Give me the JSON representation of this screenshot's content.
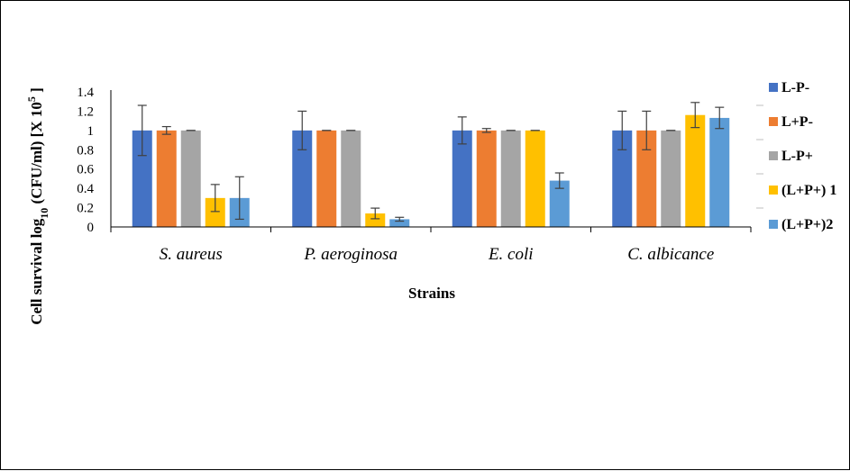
{
  "chart_data": {
    "type": "bar",
    "categories": [
      "S. aureus",
      "P. aeroginosa",
      "E. coli",
      "C. albicance"
    ],
    "series": [
      {
        "name": "L-P-",
        "color": "#4472C4",
        "values": [
          1,
          1,
          1,
          1
        ],
        "errors": [
          0.26,
          0.2,
          0.14,
          0.2
        ]
      },
      {
        "name": "L+P-",
        "color": "#ED7D31",
        "values": [
          1,
          1,
          1,
          1
        ],
        "errors": [
          0.04,
          0.0,
          0.02,
          0.2
        ]
      },
      {
        "name": "L-P+",
        "color": "#A5A5A5",
        "values": [
          1,
          1,
          1,
          1
        ],
        "errors": [
          0.0,
          0.0,
          0.0,
          0.0
        ]
      },
      {
        "name": "(L+P+) 1",
        "color": "#FFC000",
        "values": [
          0.3,
          0.14,
          1,
          1.16
        ],
        "errors": [
          0.14,
          0.055,
          0.0,
          0.13
        ]
      },
      {
        "name": "(L+P+)2",
        "color": "#5B9BD5",
        "values": [
          0.3,
          0.08,
          0.48,
          1.13
        ],
        "errors": [
          0.22,
          0.02,
          0.08,
          0.11
        ]
      }
    ],
    "xlabel": "Strains",
    "ylabel": "Cell survival log10 (CFU/ml) [X 10^5 ]",
    "ylabel_parts": {
      "a": "Cell survival log",
      "sub": "10",
      "b": " (CFU/ml) [X 10",
      "sup": "5",
      "c": " ]"
    },
    "ylim": [
      0,
      1.4
    ],
    "yticks": [
      "0",
      "0.2",
      "0.4",
      "0.6",
      "0.8",
      "1",
      "1.2",
      "1.4"
    ],
    "grid": false,
    "legend_position": "right"
  }
}
